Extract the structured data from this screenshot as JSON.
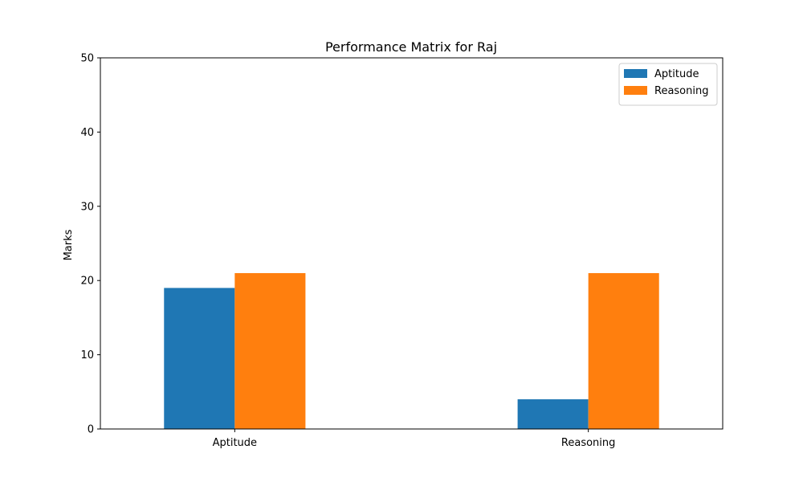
{
  "chart_data": {
    "type": "bar",
    "title": "Performance Matrix for Raj",
    "xlabel": "",
    "ylabel": "Marks",
    "categories": [
      "Aptitude",
      "Reasoning"
    ],
    "series": [
      {
        "name": "Aptitude",
        "values": [
          19,
          4
        ],
        "color": "#1f77b4"
      },
      {
        "name": "Reasoning",
        "values": [
          21,
          21
        ],
        "color": "#ff7f0e"
      }
    ],
    "ylim": [
      0,
      50
    ],
    "yticks": [
      0,
      10,
      20,
      30,
      40,
      50
    ],
    "grid": false,
    "legend_position": "top-right"
  }
}
